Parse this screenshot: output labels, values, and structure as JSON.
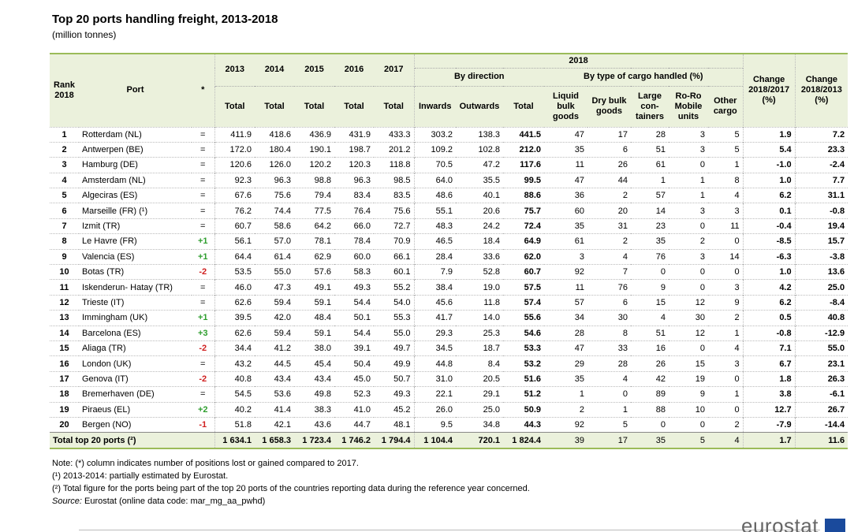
{
  "title": "Top 20 ports handling freight, 2013-2018",
  "subtitle": "(million tonnes)",
  "table": {
    "header": {
      "rank": "Rank 2018",
      "port": "Port",
      "star": "*",
      "years": [
        "2013",
        "2014",
        "2015",
        "2016",
        "2017"
      ],
      "year_2018": "2018",
      "by_direction": "By direction",
      "by_type": "By type of cargo handled (%)",
      "change_1": "Change 2018/2017 (%)",
      "change_2": "Change 2018/2013 (%)",
      "totals": [
        "Total",
        "Total",
        "Total",
        "Total",
        "Total"
      ],
      "direction_cols": [
        "Inwards",
        "Outwards",
        "Total"
      ],
      "type_cols": [
        "Liquid bulk goods",
        "Dry bulk goods",
        "Large con- tainers",
        "Ro-Ro Mobile units",
        "Other cargo"
      ]
    },
    "rows": [
      [
        "1",
        "Rotterdam (NL)",
        "=",
        "411.9",
        "418.6",
        "436.9",
        "431.9",
        "433.3",
        "303.2",
        "138.3",
        "441.5",
        "47",
        "17",
        "28",
        "3",
        "5",
        "1.9",
        "7.2"
      ],
      [
        "2",
        "Antwerpen (BE)",
        "=",
        "172.0",
        "180.4",
        "190.1",
        "198.7",
        "201.2",
        "109.2",
        "102.8",
        "212.0",
        "35",
        "6",
        "51",
        "3",
        "5",
        "5.4",
        "23.3"
      ],
      [
        "3",
        "Hamburg (DE)",
        "=",
        "120.6",
        "126.0",
        "120.2",
        "120.3",
        "118.8",
        "70.5",
        "47.2",
        "117.6",
        "11",
        "26",
        "61",
        "0",
        "1",
        "-1.0",
        "-2.4"
      ],
      [
        "4",
        "Amsterdam (NL)",
        "=",
        "92.3",
        "96.3",
        "98.8",
        "96.3",
        "98.5",
        "64.0",
        "35.5",
        "99.5",
        "47",
        "44",
        "1",
        "1",
        "8",
        "1.0",
        "7.7"
      ],
      [
        "5",
        "Algeciras (ES)",
        "=",
        "67.6",
        "75.6",
        "79.4",
        "83.4",
        "83.5",
        "48.6",
        "40.1",
        "88.6",
        "36",
        "2",
        "57",
        "1",
        "4",
        "6.2",
        "31.1"
      ],
      [
        "6",
        "Marseille (FR) (¹)",
        "=",
        "76.2",
        "74.4",
        "77.5",
        "76.4",
        "75.6",
        "55.1",
        "20.6",
        "75.7",
        "60",
        "20",
        "14",
        "3",
        "3",
        "0.1",
        "-0.8"
      ],
      [
        "7",
        "Izmit (TR)",
        "=",
        "60.7",
        "58.6",
        "64.2",
        "66.0",
        "72.7",
        "48.3",
        "24.2",
        "72.4",
        "35",
        "31",
        "23",
        "0",
        "11",
        "-0.4",
        "19.4"
      ],
      [
        "8",
        "Le Havre (FR)",
        "+1",
        "56.1",
        "57.0",
        "78.1",
        "78.4",
        "70.9",
        "46.5",
        "18.4",
        "64.9",
        "61",
        "2",
        "35",
        "2",
        "0",
        "-8.5",
        "15.7"
      ],
      [
        "9",
        "Valencia (ES)",
        "+1",
        "64.4",
        "61.4",
        "62.9",
        "60.0",
        "66.1",
        "28.4",
        "33.6",
        "62.0",
        "3",
        "4",
        "76",
        "3",
        "14",
        "-6.3",
        "-3.8"
      ],
      [
        "10",
        "Botas (TR)",
        "-2",
        "53.5",
        "55.0",
        "57.6",
        "58.3",
        "60.1",
        "7.9",
        "52.8",
        "60.7",
        "92",
        "7",
        "0",
        "0",
        "0",
        "1.0",
        "13.6"
      ],
      [
        "11",
        "Iskenderun- Hatay (TR)",
        "=",
        "46.0",
        "47.3",
        "49.1",
        "49.3",
        "55.2",
        "38.4",
        "19.0",
        "57.5",
        "11",
        "76",
        "9",
        "0",
        "3",
        "4.2",
        "25.0"
      ],
      [
        "12",
        "Trieste (IT)",
        "=",
        "62.6",
        "59.4",
        "59.1",
        "54.4",
        "54.0",
        "45.6",
        "11.8",
        "57.4",
        "57",
        "6",
        "15",
        "12",
        "9",
        "6.2",
        "-8.4"
      ],
      [
        "13",
        "Immingham (UK)",
        "+1",
        "39.5",
        "42.0",
        "48.4",
        "50.1",
        "55.3",
        "41.7",
        "14.0",
        "55.6",
        "34",
        "30",
        "4",
        "30",
        "2",
        "0.5",
        "40.8"
      ],
      [
        "14",
        "Barcelona (ES)",
        "+3",
        "62.6",
        "59.4",
        "59.1",
        "54.4",
        "55.0",
        "29.3",
        "25.3",
        "54.6",
        "28",
        "8",
        "51",
        "12",
        "1",
        "-0.8",
        "-12.9"
      ],
      [
        "15",
        "Aliaga (TR)",
        "-2",
        "34.4",
        "41.2",
        "38.0",
        "39.1",
        "49.7",
        "34.5",
        "18.7",
        "53.3",
        "47",
        "33",
        "16",
        "0",
        "4",
        "7.1",
        "55.0"
      ],
      [
        "16",
        "London (UK)",
        "=",
        "43.2",
        "44.5",
        "45.4",
        "50.4",
        "49.9",
        "44.8",
        "8.4",
        "53.2",
        "29",
        "28",
        "26",
        "15",
        "3",
        "6.7",
        "23.1"
      ],
      [
        "17",
        "Genova (IT)",
        "-2",
        "40.8",
        "43.4",
        "43.4",
        "45.0",
        "50.7",
        "31.0",
        "20.5",
        "51.6",
        "35",
        "4",
        "42",
        "19",
        "0",
        "1.8",
        "26.3"
      ],
      [
        "18",
        "Bremerhaven (DE)",
        "=",
        "54.5",
        "53.6",
        "49.8",
        "52.3",
        "49.3",
        "22.1",
        "29.1",
        "51.2",
        "1",
        "0",
        "89",
        "9",
        "1",
        "3.8",
        "-6.1"
      ],
      [
        "19",
        "Piraeus (EL)",
        "+2",
        "40.2",
        "41.4",
        "38.3",
        "41.0",
        "45.2",
        "26.0",
        "25.0",
        "50.9",
        "2",
        "1",
        "88",
        "10",
        "0",
        "12.7",
        "26.7"
      ],
      [
        "20",
        "Bergen (NO)",
        "-1",
        "51.8",
        "42.1",
        "43.6",
        "44.7",
        "48.1",
        "9.5",
        "34.8",
        "44.3",
        "92",
        "5",
        "0",
        "0",
        "2",
        "-7.9",
        "-14.4"
      ]
    ],
    "total": {
      "label": "Total top 20 ports (²)",
      "values": [
        "1 634.1",
        "1 658.3",
        "1 723.4",
        "1 746.2",
        "1 794.4",
        "1 104.4",
        "720.1",
        "1 824.4",
        "39",
        "17",
        "35",
        "5",
        "4",
        "1.7",
        "11.6"
      ]
    }
  },
  "notes": [
    "Note: (*) column indicates number of positions lost or gained compared to 2017.",
    "(¹) 2013-2014: partially estimated by Eurostat.",
    "(²) Total figure for the ports being part of the top 20 ports of the countries reporting data during the reference year concerned."
  ],
  "source_label": "Source:",
  "source": "Eurostat (online data code: mar_mg_aa_pwhd)",
  "logo": "eurostat"
}
